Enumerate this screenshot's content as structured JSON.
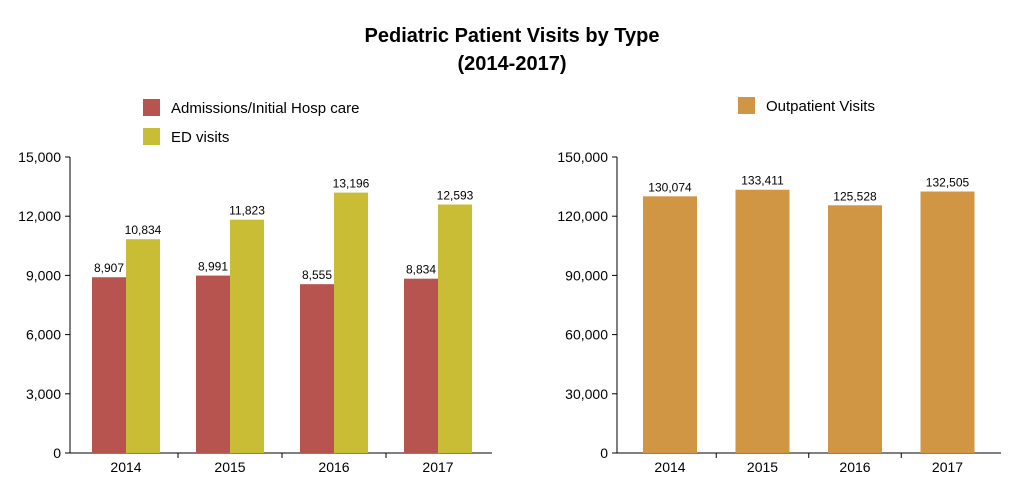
{
  "title": "Pediatric Patient Visits by Type",
  "subtitle": "(2014-2017)",
  "chart_data": [
    {
      "type": "bar",
      "categories": [
        "2014",
        "2015",
        "2016",
        "2017"
      ],
      "series": [
        {
          "name": "Admissions/Initial Hosp care",
          "color": "#b85450",
          "values": [
            8907,
            8991,
            8555,
            8834
          ],
          "labels": [
            "8,907",
            "8,991",
            "8,555",
            "8,834"
          ]
        },
        {
          "name": "ED visits",
          "color": "#c8bd34",
          "values": [
            10834,
            11823,
            13196,
            12593
          ],
          "labels": [
            "10,834",
            "11,823",
            "13,196",
            "12,593"
          ]
        }
      ],
      "ylim": [
        0,
        15000
      ],
      "yticks": [
        0,
        3000,
        6000,
        9000,
        12000,
        15000
      ],
      "ytick_labels": [
        "0",
        "3,000",
        "6,000",
        "9,000",
        "12,000",
        "15,000"
      ],
      "legend": "top-left",
      "grid": false
    },
    {
      "type": "bar",
      "categories": [
        "2014",
        "2015",
        "2016",
        "2017"
      ],
      "series": [
        {
          "name": "Outpatient Visits",
          "color": "#d09644",
          "values": [
            130074,
            133411,
            125528,
            132505
          ],
          "labels": [
            "130,074",
            "133,411",
            "125,528",
            "132,505"
          ]
        }
      ],
      "ylim": [
        0,
        150000
      ],
      "yticks": [
        0,
        30000,
        60000,
        90000,
        120000,
        150000
      ],
      "ytick_labels": [
        "0",
        "30,000",
        "60,000",
        "90,000",
        "120,000",
        "150,000"
      ],
      "legend": "top-left",
      "grid": false
    }
  ]
}
